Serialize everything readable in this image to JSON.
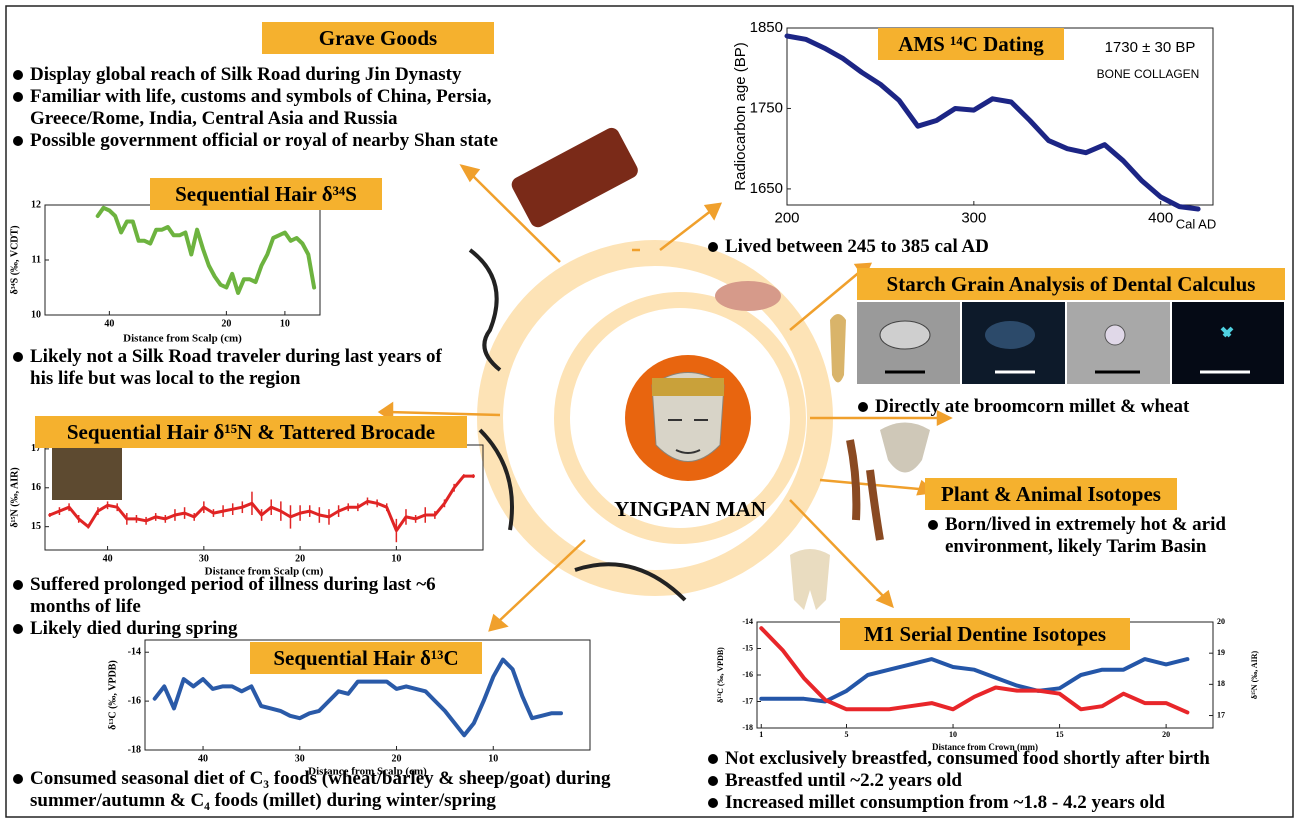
{
  "center_label": "YINGPAN MAN",
  "grave_goods": {
    "title": "Grave Goods",
    "bullets": [
      "Display global reach of Silk Road during Jin Dynasty",
      "Familiar with life, customs and symbols of China, Persia, Greece/Rome, India, Central Asia and Russia",
      "Possible government official or royal of nearby Shan state"
    ]
  },
  "starch": {
    "title": "Starch Grain Analysis of Dental Calculus",
    "bullets": [
      "Directly ate broomcorn millet & wheat"
    ]
  },
  "plant_animal": {
    "title": "Plant & Animal Isotopes",
    "bullets": [
      "Born/lived in extremely hot & arid environment, likely Tarim Basin"
    ]
  },
  "chart_data": [
    {
      "type": "line",
      "title": "Sequential Hair δ³⁴S",
      "x_label": "Distance from Scalp (cm)",
      "y_label": "δ³⁴S (‰, VCDT)",
      "x": [
        42,
        41,
        40,
        39,
        38,
        37,
        36,
        35,
        34,
        33,
        32,
        31,
        30,
        29,
        28,
        27,
        26,
        25,
        24,
        23,
        22,
        21,
        20,
        19,
        18,
        17,
        16,
        15,
        14,
        13,
        12,
        11,
        10,
        9,
        8,
        7,
        6,
        5
      ],
      "xlim": [
        51,
        4
      ],
      "xticks": [
        40,
        20,
        10
      ],
      "ylim": [
        10,
        12
      ],
      "yticks": [
        10,
        11,
        12
      ],
      "series": [
        {
          "color": "#6db33f",
          "values": [
            11.8,
            11.95,
            11.9,
            11.8,
            11.5,
            11.7,
            11.7,
            11.35,
            11.35,
            11.3,
            11.55,
            11.55,
            11.6,
            11.45,
            11.45,
            11.5,
            11.1,
            11.55,
            11.2,
            10.9,
            10.7,
            10.55,
            10.5,
            10.75,
            10.4,
            10.65,
            10.65,
            10.6,
            10.9,
            11.1,
            11.4,
            11.45,
            11.5,
            11.35,
            11.4,
            11.3,
            11.1,
            10.5
          ]
        }
      ],
      "bullets": [
        "Likely not a Silk Road traveler during last years of his life but was local to the region"
      ]
    },
    {
      "type": "line",
      "title": "Sequential Hair δ¹⁵N & Tattered Brocade",
      "x_label": "Distance from Scalp (cm)",
      "y_label": "δ¹⁵N (‰, AIR)",
      "x": [
        46,
        45,
        44,
        43,
        42,
        41,
        40,
        39,
        38,
        37,
        36,
        35,
        34,
        33,
        32,
        31,
        30,
        29,
        28,
        27,
        26,
        25,
        24,
        23,
        22,
        21,
        20,
        19,
        18,
        17,
        16,
        15,
        14,
        13,
        12,
        11,
        10,
        9,
        8,
        7,
        6,
        5,
        4,
        3,
        2
      ],
      "xlim": [
        46.5,
        1
      ],
      "xticks": [
        40,
        30,
        20,
        10
      ],
      "ylim": [
        14.4,
        17.1
      ],
      "yticks": [
        15,
        16,
        17
      ],
      "series": [
        {
          "color": "#e02424",
          "values": [
            15.3,
            15.4,
            15.5,
            15.2,
            15.0,
            15.4,
            15.55,
            15.5,
            15.2,
            15.2,
            15.15,
            15.25,
            15.2,
            15.3,
            15.35,
            15.25,
            15.5,
            15.35,
            15.4,
            15.45,
            15.5,
            15.6,
            15.3,
            15.5,
            15.4,
            15.25,
            15.35,
            15.4,
            15.3,
            15.25,
            15.4,
            15.5,
            15.5,
            15.65,
            15.6,
            15.5,
            14.9,
            15.25,
            15.2,
            15.3,
            15.3,
            15.6,
            16.0,
            16.3,
            16.3
          ],
          "errors": [
            0.05,
            0.1,
            0.1,
            0.1,
            0.05,
            0.1,
            0.1,
            0.1,
            0.15,
            0.1,
            0.1,
            0.1,
            0.1,
            0.15,
            0.15,
            0.1,
            0.15,
            0.1,
            0.15,
            0.15,
            0.15,
            0.3,
            0.15,
            0.2,
            0.25,
            0.3,
            0.2,
            0.15,
            0.2,
            0.2,
            0.15,
            0.1,
            0.1,
            0.1,
            0.1,
            0.1,
            0.3,
            0.2,
            0.1,
            0.2,
            0.1,
            0.1,
            0.1,
            0.05,
            0.05
          ]
        }
      ],
      "bullets": [
        "Suffered prolonged period of illness during last ~6 months of life",
        "Likely died during spring"
      ]
    },
    {
      "type": "line",
      "title": "Sequential Hair δ¹³C",
      "x_label": "Distance from Scalp (cm)",
      "y_label": "δ¹³C (‰, VPDB)",
      "x": [
        45,
        44,
        43,
        42,
        41,
        40,
        39,
        38,
        37,
        36,
        35,
        34,
        33,
        32,
        31,
        30,
        29,
        28,
        27,
        26,
        25,
        24,
        23,
        22,
        21,
        20,
        19,
        18,
        17,
        16,
        15,
        14,
        13,
        12,
        11,
        10,
        9,
        8,
        7,
        6,
        5,
        4,
        3
      ],
      "xlim": [
        46,
        0
      ],
      "xticks": [
        40,
        30,
        20,
        10
      ],
      "ylim": [
        -18,
        -13.5
      ],
      "yticks": [
        -18,
        -16,
        -14
      ],
      "series": [
        {
          "color": "#2a5aa8",
          "values": [
            -15.9,
            -15.4,
            -16.3,
            -15.1,
            -15.4,
            -15.1,
            -15.5,
            -15.4,
            -15.4,
            -15.6,
            -15.4,
            -16.2,
            -16.3,
            -16.4,
            -16.6,
            -16.7,
            -16.5,
            -16.4,
            -16.0,
            -15.6,
            -15.7,
            -15.2,
            -15.2,
            -15.2,
            -15.2,
            -15.5,
            -15.4,
            -15.5,
            -15.6,
            -16.0,
            -16.4,
            -16.9,
            -17.4,
            -16.9,
            -16.0,
            -15.0,
            -14.3,
            -14.7,
            -15.8,
            -16.7,
            -16.6,
            -16.5,
            -16.5
          ]
        }
      ],
      "bullets": [
        "Consumed seasonal diet of C₃ foods (wheat/barley & sheep/goat) during summer/autumn & C₄ foods (millet) during winter/spring"
      ]
    },
    {
      "type": "line",
      "title": "AMS ¹⁴C Dating",
      "annotations": [
        "1730 ± 30 BP",
        "BONE COLLAGEN"
      ],
      "x_label": "Cal AD",
      "y_label": "Radiocarbon age (BP)",
      "x": [
        200,
        210,
        220,
        230,
        240,
        250,
        260,
        270,
        280,
        290,
        300,
        310,
        320,
        330,
        340,
        350,
        360,
        370,
        380,
        390,
        400,
        410,
        420
      ],
      "xlim": [
        200,
        428
      ],
      "xticks": [
        200,
        300,
        400
      ],
      "ylim": [
        1630,
        1850
      ],
      "yticks": [
        1650,
        1750,
        1850
      ],
      "series": [
        {
          "color": "#1c2585",
          "values": [
            1840,
            1836,
            1825,
            1812,
            1795,
            1780,
            1760,
            1728,
            1735,
            1750,
            1748,
            1762,
            1758,
            1735,
            1710,
            1700,
            1695,
            1705,
            1685,
            1660,
            1640,
            1628,
            1625
          ]
        }
      ],
      "bullets": [
        "Lived between 245 to 385 cal AD"
      ]
    },
    {
      "type": "line",
      "title": "M1 Serial Dentine Isotopes",
      "x_label": "Distance from Crown (mm)",
      "y_label": "δ¹³C (‰, VPDB)",
      "y2_label": "δ¹⁵N (‰, AIR)",
      "x": [
        1,
        2,
        3,
        4,
        5,
        6,
        7,
        8,
        9,
        10,
        11,
        12,
        13,
        14,
        15,
        16,
        17,
        18,
        19,
        20,
        21
      ],
      "xlim": [
        0.8,
        22.2
      ],
      "xticks": [
        1,
        5,
        10,
        15,
        20
      ],
      "ylim": [
        -18,
        -14
      ],
      "yticks": [
        -18,
        -17,
        -16,
        -15,
        -14
      ],
      "y2lim": [
        16.6,
        20
      ],
      "y2ticks": [
        17,
        18,
        19,
        20
      ],
      "series": [
        {
          "color": "#2456a8",
          "values": [
            -16.9,
            -16.9,
            -16.9,
            -17.0,
            -16.6,
            -16.0,
            -15.8,
            -15.6,
            -15.4,
            -15.7,
            -15.8,
            -16.1,
            -16.4,
            -16.6,
            -16.5,
            -16.0,
            -15.8,
            -15.8,
            -15.4,
            -15.6,
            -15.4
          ]
        },
        {
          "color": "#e8262a",
          "axis": "y2",
          "values": [
            19.8,
            19.1,
            18.2,
            17.5,
            17.2,
            17.2,
            17.2,
            17.3,
            17.4,
            17.2,
            17.6,
            17.9,
            17.8,
            17.8,
            17.7,
            17.2,
            17.3,
            17.7,
            17.4,
            17.4,
            17.1
          ]
        }
      ],
      "bullets": [
        "Not exclusively breastfed, consumed food shortly after birth",
        "Breastfed until ~2.2 years old",
        "Increased millet consumption from ~1.8 - 4.2 years old"
      ]
    }
  ]
}
